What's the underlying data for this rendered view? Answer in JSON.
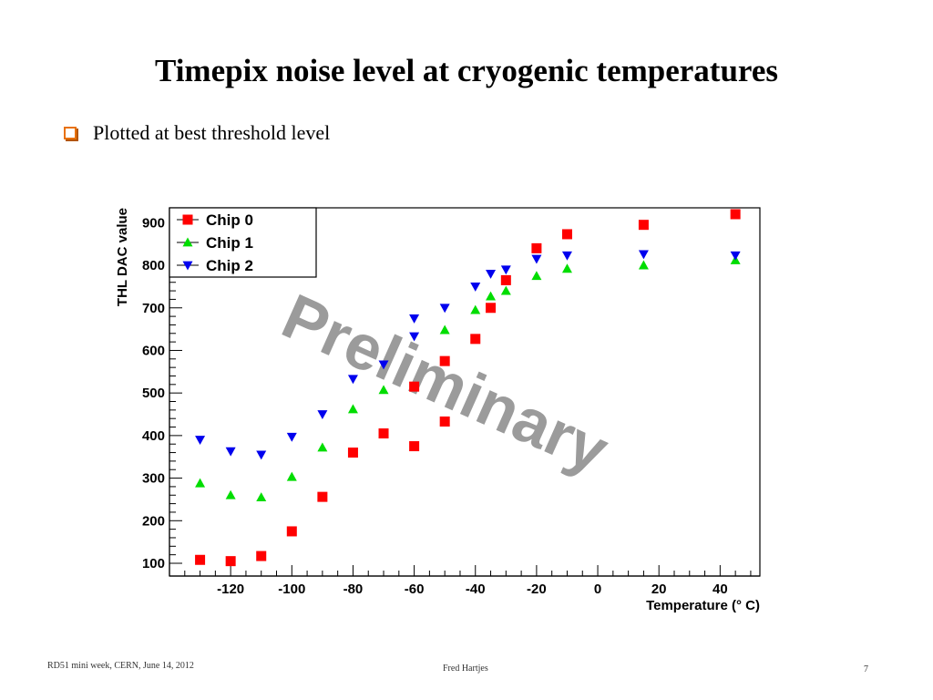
{
  "slide": {
    "title": "Timepix noise level at cryogenic temperatures",
    "bullet": "Plotted at best threshold level",
    "footer_left": "RD51 mini week, CERN, June 14, 2012",
    "footer_center": "Fred Hartjes",
    "footer_right": "7",
    "bullet_color": "#e8710a"
  },
  "chart_data": {
    "type": "scatter",
    "title": "",
    "xlabel": "Temperature (° C)",
    "ylabel": "THL DAC value",
    "xlim": [
      -140,
      53
    ],
    "ylim": [
      70,
      935
    ],
    "xticks": [
      -120,
      -100,
      -80,
      -60,
      -40,
      -20,
      0,
      20,
      40
    ],
    "yticks": [
      100,
      200,
      300,
      400,
      500,
      600,
      700,
      800,
      900
    ],
    "grid": false,
    "legend_position": "top-left",
    "watermark": "Preliminary",
    "series": [
      {
        "name": "Chip 0",
        "color": "#ff0000",
        "marker": "square",
        "points": [
          [
            -130,
            108
          ],
          [
            -120,
            105
          ],
          [
            -110,
            117
          ],
          [
            -100,
            175
          ],
          [
            -90,
            256
          ],
          [
            -80,
            360
          ],
          [
            -70,
            405
          ],
          [
            -60,
            375
          ],
          [
            -60,
            515
          ],
          [
            -50,
            433
          ],
          [
            -50,
            575
          ],
          [
            -40,
            627
          ],
          [
            -35,
            700
          ],
          [
            -30,
            765
          ],
          [
            -20,
            840
          ],
          [
            -10,
            873
          ],
          [
            15,
            895
          ],
          [
            45,
            920
          ]
        ]
      },
      {
        "name": "Chip 1",
        "color": "#00dd00",
        "marker": "triangle-up",
        "points": [
          [
            -130,
            288
          ],
          [
            -120,
            260
          ],
          [
            -110,
            255
          ],
          [
            -100,
            303
          ],
          [
            -90,
            372
          ],
          [
            -80,
            462
          ],
          [
            -70,
            507
          ],
          [
            -50,
            648
          ],
          [
            -40,
            695
          ],
          [
            -35,
            727
          ],
          [
            -30,
            740
          ],
          [
            -20,
            775
          ],
          [
            -10,
            792
          ],
          [
            15,
            800
          ],
          [
            45,
            812
          ]
        ]
      },
      {
        "name": "Chip 2",
        "color": "#0000ee",
        "marker": "triangle-down",
        "points": [
          [
            -130,
            390
          ],
          [
            -120,
            363
          ],
          [
            -110,
            355
          ],
          [
            -100,
            397
          ],
          [
            -90,
            450
          ],
          [
            -80,
            533
          ],
          [
            -70,
            567
          ],
          [
            -60,
            633
          ],
          [
            -60,
            675
          ],
          [
            -50,
            700
          ],
          [
            -40,
            750
          ],
          [
            -35,
            780
          ],
          [
            -30,
            790
          ],
          [
            -20,
            815
          ],
          [
            -10,
            823
          ],
          [
            15,
            826
          ],
          [
            45,
            823
          ]
        ]
      }
    ]
  }
}
